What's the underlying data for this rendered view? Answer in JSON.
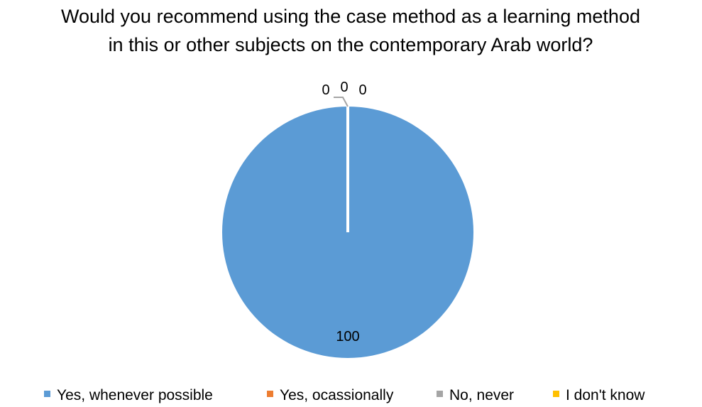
{
  "chart_data": {
    "type": "pie",
    "title": [
      "Would you recommend using the case method as a learning method",
      "in this or other subjects on the contemporary Arab world?"
    ],
    "categories": [
      "Yes, whenever possible",
      "Yes, ocassionally",
      "No, never",
      "I don't know"
    ],
    "values": [
      100,
      0,
      0,
      0
    ],
    "data_labels": [
      "100",
      "0",
      "0",
      "0"
    ],
    "colors": [
      "#5B9BD5",
      "#ED7D31",
      "#A5A5A5",
      "#FFC000"
    ],
    "legend_position": "bottom"
  }
}
